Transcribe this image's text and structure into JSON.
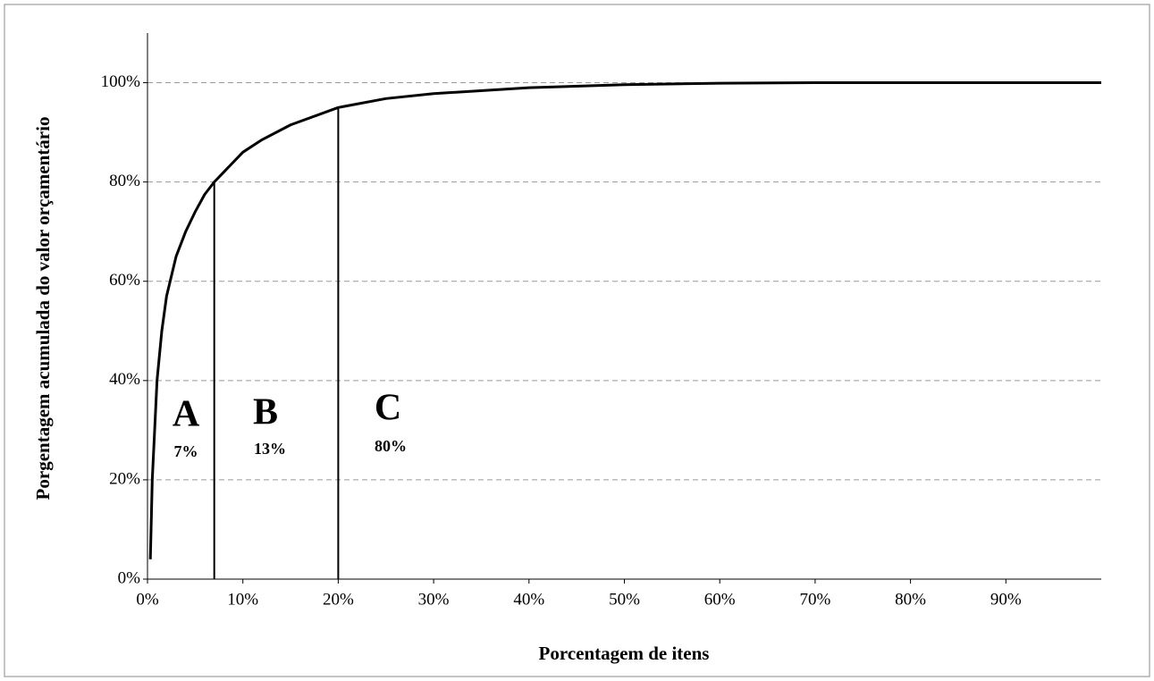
{
  "chart_data": {
    "type": "line",
    "y_label": "Porgentagem  acumulada do valor orçamentário",
    "x_label": "Porcentagem de itens",
    "x": [
      0.3,
      0.5,
      1,
      1.5,
      2,
      3,
      4,
      5,
      6,
      7,
      8,
      10,
      12,
      15,
      20,
      25,
      30,
      40,
      50,
      60,
      70,
      80,
      90,
      100
    ],
    "values": [
      4,
      20,
      40,
      50,
      57,
      65,
      70,
      74,
      77.5,
      80,
      82,
      86,
      88.5,
      91.5,
      95,
      96.8,
      97.8,
      99,
      99.6,
      99.9,
      100,
      100,
      100,
      100
    ],
    "color": "#000000",
    "markers": [
      {
        "x": 7,
        "y": 80
      },
      {
        "x": 20,
        "y": 95
      }
    ],
    "annotations": [
      {
        "letter": "A",
        "share": "7%"
      },
      {
        "letter": "B",
        "share": "13%"
      },
      {
        "letter": "C",
        "share": "80%"
      }
    ],
    "xlim": [
      0,
      100
    ],
    "ylim": [
      0,
      110
    ],
    "xticks": [
      {
        "value": 0,
        "label": "0%"
      },
      {
        "value": 10,
        "label": "10%"
      },
      {
        "value": 20,
        "label": "20%"
      },
      {
        "value": 30,
        "label": "30%"
      },
      {
        "value": 40,
        "label": "40%"
      },
      {
        "value": 50,
        "label": "50%"
      },
      {
        "value": 60,
        "label": "60%"
      },
      {
        "value": 70,
        "label": "70%"
      },
      {
        "value": 80,
        "label": "80%"
      },
      {
        "value": 90,
        "label": "90%"
      }
    ],
    "yticks": [
      {
        "value": 0,
        "label": "0%"
      },
      {
        "value": 20,
        "label": "20%"
      },
      {
        "value": 40,
        "label": "40%"
      },
      {
        "value": 60,
        "label": "60%"
      },
      {
        "value": 80,
        "label": "80%"
      },
      {
        "value": 100,
        "label": "100%"
      }
    ],
    "grid": true
  }
}
